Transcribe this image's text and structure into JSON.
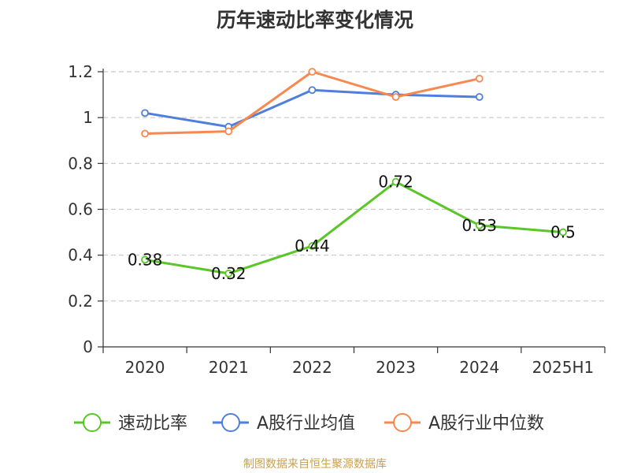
{
  "title": "历年速动比率变化情况",
  "source": "制图数据来自恒生聚源数据库",
  "chart_data": {
    "type": "line",
    "title": "历年速动比率变化情况",
    "categories": [
      "2020",
      "2021",
      "2022",
      "2023",
      "2024",
      "2025H1"
    ],
    "ylim": [
      0,
      1.2
    ],
    "yticks": [
      0,
      0.2,
      0.4,
      0.6,
      0.8,
      1,
      1.2
    ],
    "ytick_labels": [
      "0",
      "0.2",
      "0.4",
      "0.6",
      "0.8",
      "1",
      "1.2"
    ],
    "grid": true,
    "legend_position": "bottom",
    "series": [
      {
        "name": "速动比率",
        "color": "#5bc627",
        "values": [
          0.38,
          0.32,
          0.44,
          0.72,
          0.53,
          0.5
        ],
        "labels": [
          "0.38",
          "0.32",
          "0.44",
          "0.72",
          "0.53",
          "0.5"
        ]
      },
      {
        "name": "A股行业均值",
        "color": "#4f7fdc",
        "values": [
          1.02,
          0.96,
          1.12,
          1.1,
          1.09,
          null
        ]
      },
      {
        "name": "A股行业中位数",
        "color": "#f7884f",
        "values": [
          0.93,
          0.94,
          1.2,
          1.09,
          1.17,
          null
        ]
      }
    ]
  }
}
